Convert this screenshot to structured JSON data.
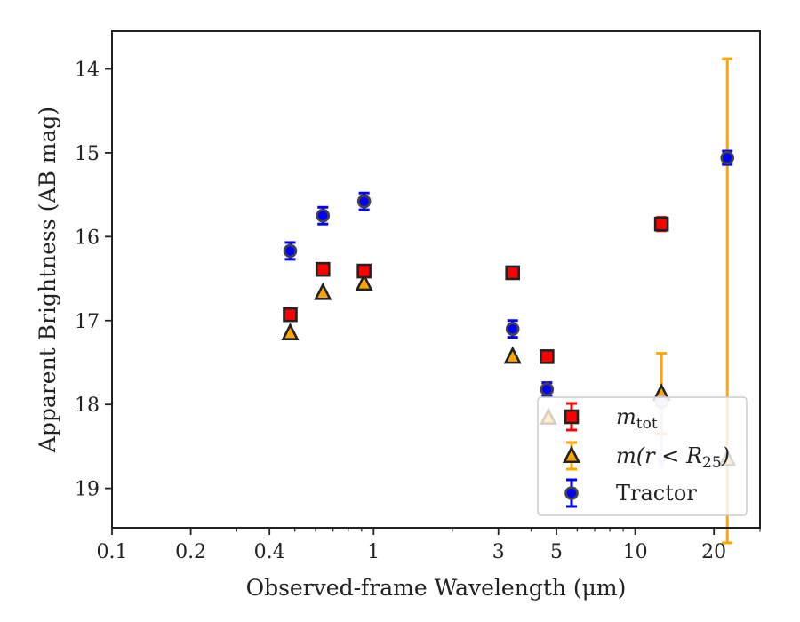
{
  "chart_data": {
    "type": "scatter",
    "title": "",
    "xlabel": "Observed-frame Wavelength (μm)",
    "ylabel": "Apparent Brightness (AB mag)",
    "xscale": "log",
    "xlim": [
      0.1,
      30
    ],
    "ylim": [
      19.47,
      13.55
    ],
    "y_inverted": true,
    "x_ticks": [
      0.1,
      0.2,
      0.4,
      1,
      3,
      5,
      10,
      20
    ],
    "x_tick_labels": [
      "0.1",
      "0.2",
      "0.4",
      "1",
      "3",
      "5",
      "10",
      "20"
    ],
    "y_ticks": [
      14,
      15,
      16,
      17,
      18,
      19
    ],
    "y_tick_labels": [
      "14",
      "15",
      "16",
      "17",
      "18",
      "19"
    ],
    "grid": false,
    "legend_position": "lower-right",
    "series": [
      {
        "name": "m_tot",
        "marker": "square",
        "color": "#ff0000",
        "errorbar_color": "#ff0000",
        "points": [
          {
            "x": 0.48,
            "y": 16.93,
            "err": 0.06
          },
          {
            "x": 0.64,
            "y": 16.39,
            "err": 0.06
          },
          {
            "x": 0.92,
            "y": 16.41,
            "err": 0.06
          },
          {
            "x": 3.4,
            "y": 16.43,
            "err": 0.06
          },
          {
            "x": 4.6,
            "y": 17.43,
            "err": 0.06
          },
          {
            "x": 12.6,
            "y": 15.85,
            "err": 0.08
          }
        ]
      },
      {
        "name": "m(r < R25)",
        "marker": "triangle",
        "color": "#ffa500",
        "errorbar_color": "#ffa500",
        "points": [
          {
            "x": 0.48,
            "y": 17.15,
            "err": 0.0
          },
          {
            "x": 0.64,
            "y": 16.67,
            "err": 0.0
          },
          {
            "x": 0.92,
            "y": 16.56,
            "err": 0.0
          },
          {
            "x": 3.4,
            "y": 17.43,
            "err": 0.0
          },
          {
            "x": 12.6,
            "y": 17.87,
            "err": 0.48
          },
          {
            "x": 22.5,
            "y": 18.65,
            "err_low": 4.77,
            "err_high": 1.0
          }
        ]
      },
      {
        "name": "Tractor",
        "marker": "circle",
        "color": "#0000ff",
        "errorbar_color": "#0000ff",
        "points": [
          {
            "x": 0.48,
            "y": 16.17,
            "err": 0.1
          },
          {
            "x": 0.64,
            "y": 15.75,
            "err": 0.1
          },
          {
            "x": 0.92,
            "y": 15.58,
            "err": 0.1
          },
          {
            "x": 3.4,
            "y": 17.1,
            "err": 0.1
          },
          {
            "x": 4.6,
            "y": 17.82,
            "err": 0.08
          },
          {
            "x": 12.6,
            "y": 17.97,
            "upper_limit": true
          },
          {
            "x": 22.5,
            "y": 15.06,
            "err": 0.08
          }
        ]
      }
    ],
    "legend": {
      "entries": [
        {
          "label": "m",
          "subscript": "tot",
          "marker": "square"
        },
        {
          "label": "m(r < R",
          "subscript": "25",
          "suffix": ")",
          "marker": "triangle"
        },
        {
          "label": "Tractor",
          "subscript": "",
          "marker": "circle"
        }
      ]
    }
  }
}
